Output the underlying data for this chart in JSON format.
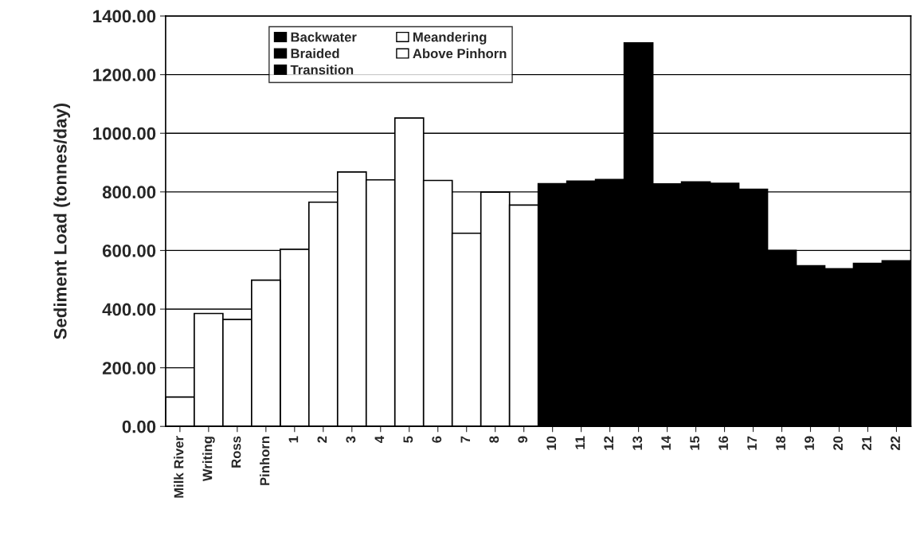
{
  "chart_data": {
    "type": "bar",
    "ylabel": "Sediment Load (tonnes/day)",
    "categories": [
      "Milk River",
      "Writing",
      "Ross",
      "Pinhorn",
      "1",
      "2",
      "3",
      "4",
      "5",
      "6",
      "7",
      "8",
      "9",
      "10",
      "11",
      "12",
      "13",
      "14",
      "15",
      "16",
      "17",
      "18",
      "19",
      "20",
      "21",
      "22"
    ],
    "series": [
      {
        "name": "Backwater",
        "color": "#000000",
        "values": [
          null,
          null,
          null,
          null,
          null,
          null,
          null,
          null,
          null,
          null,
          null,
          null,
          null,
          null,
          null,
          null,
          null,
          null,
          null,
          null,
          null,
          600,
          548,
          538,
          556,
          565
        ]
      },
      {
        "name": "Braided",
        "color": "#000000",
        "values": [
          null,
          null,
          null,
          null,
          null,
          null,
          null,
          null,
          null,
          null,
          null,
          null,
          null,
          null,
          null,
          null,
          1308,
          827,
          834,
          829,
          809,
          null,
          null,
          null,
          null,
          null
        ]
      },
      {
        "name": "Transition",
        "color": "#000000",
        "values": [
          null,
          null,
          null,
          null,
          null,
          null,
          null,
          null,
          null,
          null,
          null,
          null,
          null,
          828,
          837,
          842,
          null,
          null,
          null,
          null,
          null,
          null,
          null,
          null,
          null,
          null
        ]
      },
      {
        "name": "Meandering",
        "color": "#ffffff",
        "values": [
          null,
          null,
          null,
          null,
          604,
          765,
          868,
          841,
          1052,
          839,
          659,
          799,
          755,
          null,
          null,
          null,
          null,
          null,
          null,
          null,
          null,
          null,
          null,
          null,
          null,
          null
        ]
      },
      {
        "name": "Above Pinhorn",
        "color": "#ffffff",
        "values": [
          100,
          385,
          365,
          499,
          null,
          null,
          null,
          null,
          null,
          null,
          null,
          null,
          null,
          null,
          null,
          null,
          null,
          null,
          null,
          null,
          null,
          null,
          null,
          null,
          null,
          null
        ]
      }
    ],
    "ylim": [
      0,
      1400
    ],
    "yticks": [
      {
        "value": 0,
        "label": "0.00"
      },
      {
        "value": 200,
        "label": "200.00"
      },
      {
        "value": 400,
        "label": "400.00"
      },
      {
        "value": 600,
        "label": "600.00"
      },
      {
        "value": 800,
        "label": "800.00"
      },
      {
        "value": 1000,
        "label": "1000.00"
      },
      {
        "value": 1200,
        "label": "1200.00"
      },
      {
        "value": 1400,
        "label": "1400.00"
      }
    ],
    "grid": "y",
    "legend": "top left"
  }
}
